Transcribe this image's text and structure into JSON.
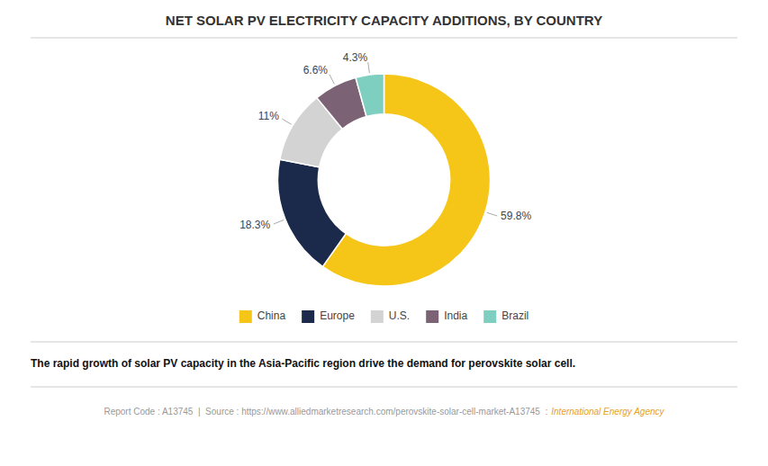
{
  "chart_data": {
    "type": "donut",
    "title": "NET SOLAR PV ELECTRICITY CAPACITY ADDITIONS, BY COUNTRY",
    "subtitle": "The rapid growth of solar PV capacity in the Asia-Pacific region drive the demand for perovskite solar cell.",
    "annotations": [
      "Report Code : A13745  |  Source : https://www.alliedmarketresearch.com/perovskite-solar-cell-market-A13745  :",
      "International Energy Agency"
    ],
    "categories": [
      "China",
      "Europe",
      "U.S.",
      "India",
      "Brazil"
    ],
    "values": [
      59.8,
      18.3,
      11.0,
      6.6,
      4.3
    ],
    "value_labels": [
      "59.8%",
      "18.3%",
      "11%",
      "6.6%",
      "4.3%"
    ],
    "colors": [
      "#F5C518",
      "#1B2A4A",
      "#D3D3D3",
      "#7B6375",
      "#7ECFC0"
    ],
    "data_labels": true,
    "legend": "bottom"
  }
}
